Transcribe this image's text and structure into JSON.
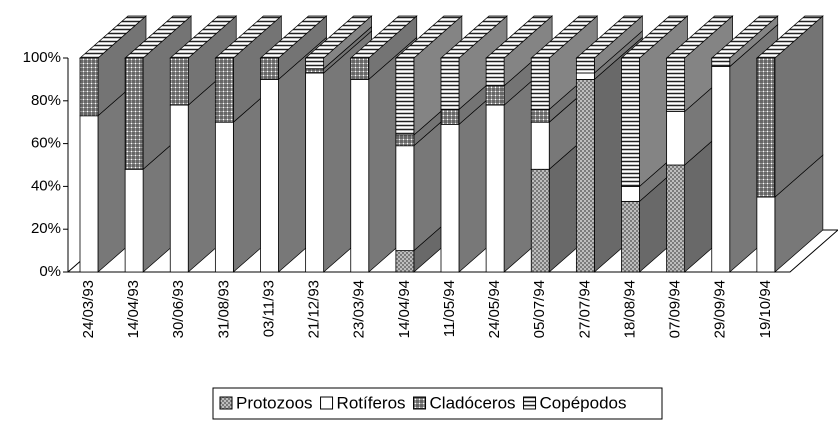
{
  "chart_data": {
    "type": "bar3d_stacked100",
    "categories": [
      "24/03/93",
      "14/04/93",
      "30/06/93",
      "31/08/93",
      "03/11/93",
      "21/12/93",
      "23/03/94",
      "14/04/94",
      "11/05/94",
      "24/05/94",
      "05/07/94",
      "27/07/94",
      "18/08/94",
      "07/09/94",
      "29/09/94",
      "19/10/94"
    ],
    "series": [
      {
        "name": "Protozoos",
        "color": "#8c8c8c",
        "values": [
          0,
          0,
          0,
          0,
          0,
          0,
          0,
          10,
          0,
          0,
          48,
          90,
          33,
          50,
          0,
          0
        ]
      },
      {
        "name": "Rotíferos",
        "color": "#ffffff",
        "values": [
          73,
          48,
          78,
          70,
          90,
          93,
          90,
          49,
          69,
          78,
          22,
          3,
          7,
          25,
          96,
          35
        ]
      },
      {
        "name": "Cladóceros",
        "color": "#9a9a9a",
        "values": [
          27,
          52,
          22,
          30,
          10,
          2,
          10,
          5,
          7,
          9,
          6,
          0,
          0,
          0,
          0,
          65
        ]
      },
      {
        "name": "Copépodos",
        "color": "#b0b0b0",
        "values": [
          0,
          0,
          0,
          0,
          0,
          5,
          0,
          36,
          24,
          13,
          24,
          7,
          60,
          25,
          4,
          0
        ]
      }
    ],
    "ylim": [
      0,
      100
    ],
    "yticks": [
      {
        "value": 0,
        "label": "0%"
      },
      {
        "value": 20,
        "label": "20%"
      },
      {
        "value": 40,
        "label": "40%"
      },
      {
        "value": 60,
        "label": "60%"
      },
      {
        "value": 80,
        "label": "80%"
      },
      {
        "value": 100,
        "label": "100%"
      }
    ],
    "legend": "bottom"
  }
}
